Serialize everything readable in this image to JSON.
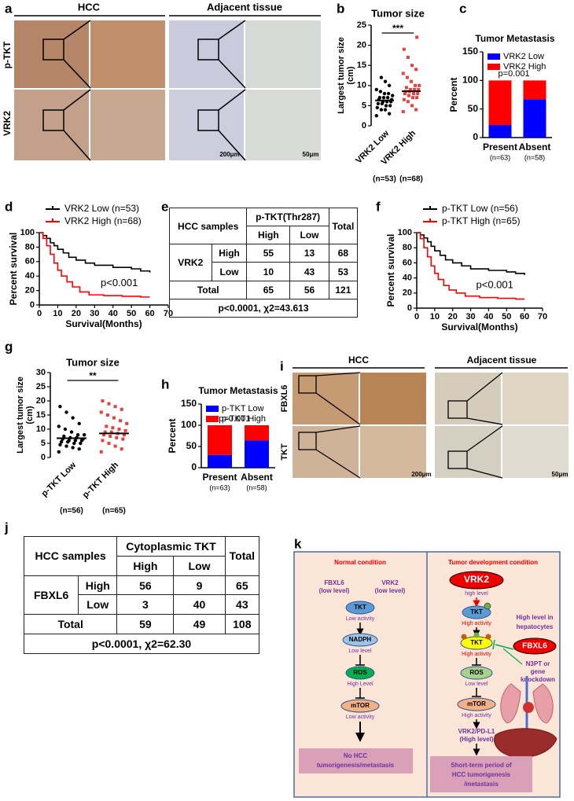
{
  "panel_labels": [
    "a",
    "b",
    "c",
    "d",
    "e",
    "f",
    "g",
    "h",
    "i",
    "j",
    "k"
  ],
  "figure_a": {
    "headers": [
      "HCC",
      "Adjacent tissue"
    ],
    "row_labels": [
      "p-TKT",
      "VRK2"
    ],
    "scale_bars": [
      "200μm",
      "50μm"
    ]
  },
  "figure_i": {
    "headers": [
      "HCC",
      "Adjacent tissue"
    ],
    "row_labels": [
      "FBXL6",
      "TKT"
    ],
    "scale_bars": [
      "200μm",
      "50μm"
    ]
  },
  "chart_data": [
    {
      "type": "strip",
      "title": "Tumor size",
      "y_label": [
        "Largest tumor size",
        "(cm)"
      ],
      "categories": [
        "VRK2 Low",
        "VRK2 High"
      ],
      "category_notes": [
        "(n=53)",
        "(n=68)"
      ],
      "colors": [
        "#000000",
        "#f03c3c"
      ],
      "markers": [
        "circle",
        "square"
      ],
      "points": [
        [
          2.5,
          3,
          4,
          4,
          4.5,
          5,
          5,
          5.5,
          5.5,
          6,
          6,
          6,
          6.5,
          6.5,
          7,
          7,
          7,
          7.5,
          8,
          8,
          8.5,
          9,
          10,
          11,
          12
        ],
        [
          3.5,
          4,
          5,
          6,
          6.5,
          7,
          7,
          7.5,
          8,
          8,
          8,
          8.5,
          8.5,
          9,
          9,
          9,
          9.5,
          10,
          10,
          11,
          12,
          13,
          14,
          15,
          17,
          19,
          22
        ]
      ],
      "means": [
        6.3,
        8.6
      ],
      "ylim": [
        0,
        25
      ],
      "yticks": [
        0,
        5,
        10,
        15,
        20,
        25
      ],
      "annotation": "***"
    },
    {
      "type": "stacked_bar",
      "title": "Tumor Metastasis",
      "y_label": "Percent",
      "categories": [
        "Present",
        "Absent"
      ],
      "category_notes": [
        "(n=63)",
        "(n=58)"
      ],
      "series": [
        {
          "name": "VRK2 Low",
          "color": "#0000ff",
          "values": [
            22,
            67
          ]
        },
        {
          "name": "VRK2 High",
          "color": "#ff0000",
          "values": [
            78,
            33
          ]
        }
      ],
      "ylim": [
        0,
        150
      ],
      "yticks": [
        0,
        50,
        100,
        150
      ],
      "annotation": "p=0.001",
      "legend": "upper left"
    },
    {
      "type": "survival",
      "x_label": "Survival(Months)",
      "y_label": "Percent survival",
      "series": [
        {
          "name": "VRK2 Low (n=53)",
          "color": "#000000",
          "x": [
            0,
            2,
            4,
            6,
            8,
            10,
            13,
            16,
            20,
            25,
            30,
            40,
            50,
            55,
            60
          ],
          "values": [
            100,
            96,
            92,
            86,
            82,
            77,
            72,
            66,
            62,
            58,
            55,
            52,
            50,
            47,
            45
          ]
        },
        {
          "name": "VRK2 High (n=68)",
          "color": "#ff0000",
          "x": [
            0,
            2,
            4,
            6,
            8,
            10,
            12,
            15,
            18,
            22,
            27,
            35,
            45,
            55,
            60
          ],
          "values": [
            100,
            92,
            82,
            70,
            58,
            48,
            40,
            32,
            25,
            18,
            14,
            13,
            12,
            11,
            11
          ]
        }
      ],
      "xlim": [
        0,
        70
      ],
      "xticks": [
        0,
        10,
        20,
        30,
        40,
        50,
        60,
        70
      ],
      "ylim": [
        0,
        100
      ],
      "yticks": [
        0,
        20,
        40,
        60,
        80,
        100
      ],
      "annotation": "p<0.001",
      "legend": "above"
    },
    {
      "type": "survival",
      "x_label": "Survival(Months)",
      "y_label": "Percent survival",
      "series": [
        {
          "name": "p-TKT Low (n=56)",
          "color": "#000000",
          "x": [
            0,
            2,
            4,
            6,
            8,
            10,
            13,
            16,
            20,
            25,
            30,
            40,
            50,
            55,
            60
          ],
          "values": [
            100,
            97,
            93,
            88,
            82,
            76,
            70,
            64,
            60,
            56,
            52,
            50,
            48,
            46,
            44
          ]
        },
        {
          "name": "p-TKT High (n=65)",
          "color": "#ff0000",
          "x": [
            0,
            2,
            4,
            6,
            8,
            10,
            12,
            15,
            18,
            22,
            27,
            35,
            45,
            55,
            60
          ],
          "values": [
            100,
            92,
            80,
            68,
            56,
            46,
            38,
            30,
            24,
            20,
            16,
            14,
            13,
            12,
            12
          ]
        }
      ],
      "xlim": [
        0,
        70
      ],
      "xticks": [
        0,
        10,
        20,
        30,
        40,
        50,
        60,
        70
      ],
      "ylim": [
        0,
        100
      ],
      "yticks": [
        0,
        20,
        40,
        60,
        80,
        100
      ],
      "annotation": "p<0.001",
      "legend": "above"
    },
    {
      "type": "strip",
      "title": "Tumor size",
      "y_label": [
        "Largest tumor size",
        "(cm)"
      ],
      "categories": [
        "p-TKT Low",
        "p-TKT High"
      ],
      "category_notes": [
        "(n=56)",
        "(n=65)"
      ],
      "colors": [
        "#000000",
        "#f03c3c"
      ],
      "markers": [
        "circle",
        "square"
      ],
      "points": [
        [
          2,
          3,
          3.5,
          4,
          4.5,
          5,
          5,
          5.5,
          5.5,
          6,
          6,
          6,
          6.5,
          6.5,
          7,
          7,
          7.5,
          8,
          8,
          9,
          10,
          11,
          12,
          14,
          16,
          18
        ],
        [
          2,
          3,
          4,
          5,
          6,
          6.5,
          7,
          7.5,
          8,
          8,
          8.5,
          9,
          9,
          9.5,
          10,
          10.5,
          11,
          12,
          13,
          14,
          15,
          16,
          17,
          18,
          19,
          20
        ]
      ],
      "means": [
        6.8,
        8.5
      ],
      "ylim": [
        0,
        30
      ],
      "yticks": [
        0,
        5,
        10,
        15,
        20,
        25,
        30
      ],
      "annotation": "**"
    },
    {
      "type": "stacked_bar",
      "title": "Tumor Metastasis",
      "y_label": "Percent",
      "categories": [
        "Present",
        "Absent"
      ],
      "category_notes": [
        "(n=63)",
        "(n=58)"
      ],
      "series": [
        {
          "name": "p-TKT Low",
          "color": "#0000ff",
          "values": [
            30,
            64
          ]
        },
        {
          "name": "p-TKT High",
          "color": "#ff0000",
          "values": [
            70,
            36
          ]
        }
      ],
      "ylim": [
        0,
        150
      ],
      "yticks": [
        0,
        50,
        100,
        150
      ],
      "annotation": "p=0.001",
      "legend": "upper left"
    }
  ],
  "table_e": {
    "corner": "HCC samples",
    "column_group": "p-TKT(Thr287)",
    "total_header": "Total",
    "columns": [
      "High",
      "Low"
    ],
    "row_group": "VRK2",
    "rows": [
      {
        "label": "High",
        "values": [
          55,
          13,
          68
        ]
      },
      {
        "label": "Low",
        "values": [
          10,
          43,
          53
        ]
      }
    ],
    "total_label": "Total",
    "totals": [
      65,
      56,
      121
    ],
    "footer": "p<0.0001, χ2=43.613"
  },
  "table_j": {
    "corner": "HCC samples",
    "column_group": "Cytoplasmic TKT",
    "total_header": "Total",
    "columns": [
      "High",
      "Low"
    ],
    "row_group": "FBXL6",
    "rows": [
      {
        "label": "High",
        "values": [
          56,
          9,
          65
        ]
      },
      {
        "label": "Low",
        "values": [
          3,
          40,
          43
        ]
      }
    ],
    "total_label": "Total",
    "totals": [
      59,
      49,
      108
    ],
    "footer": "p<0.0001, χ2=62.30"
  },
  "diagram_k": {
    "left": {
      "title": "Normal condition",
      "note_fbxl6": [
        "FBXL6",
        "(low level)"
      ],
      "note_vrk2": [
        "VRK2",
        "(low level)"
      ],
      "nodes": [
        {
          "label": "TKT",
          "state": "Low activity"
        },
        {
          "label": "NADPH",
          "state": "Low level"
        },
        {
          "label": "ROS",
          "state": "High Level"
        },
        {
          "label": "mTOR",
          "state": "Low activity"
        }
      ],
      "outcome": [
        "No HCC",
        "tumorigenesis/metastasis"
      ]
    },
    "right": {
      "title": "Tumor development condition",
      "nodes": [
        {
          "label": "VRK2",
          "state": "high level"
        },
        {
          "label": "TKT",
          "state": "High activity"
        },
        {
          "label": "TKT",
          "state": "High activity"
        },
        {
          "label": "ROS",
          "state": "Low level"
        },
        {
          "label": "mTOR",
          "state": "High activity"
        }
      ],
      "fbxl6": "FBXL6",
      "fbxl6_note": [
        "High level in",
        "hepatocytes"
      ],
      "inhibitor": [
        "N3PT or",
        "gene",
        "knockdown"
      ],
      "pdl1": [
        "VRK2/PD-L1",
        "(High level)"
      ],
      "outcome": [
        "Short-term period of",
        "HCC tumorigenesis",
        "/metastasis"
      ]
    }
  }
}
